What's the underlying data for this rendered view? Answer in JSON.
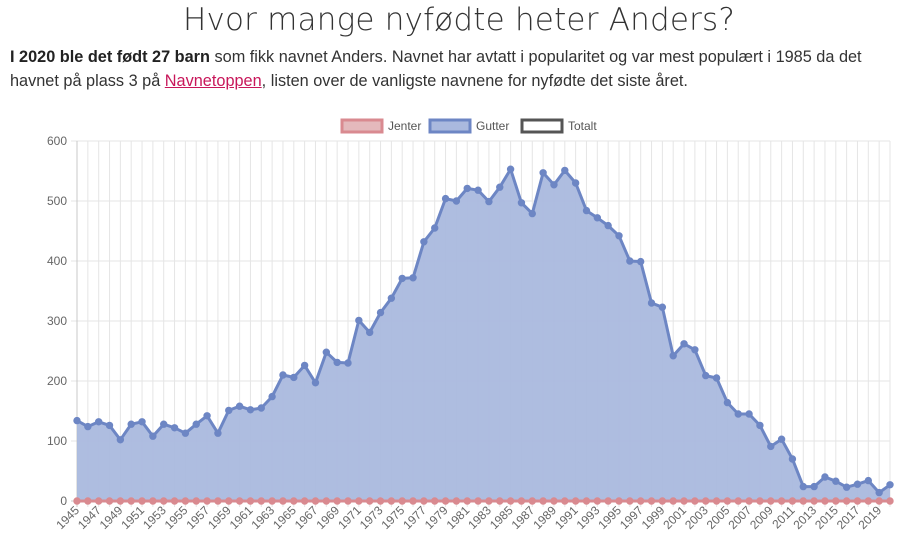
{
  "page": {
    "title": "Hvor mange nyfødte heter Anders?",
    "intro_bold": "I 2020 ble det født 27 barn",
    "intro_text_1": " som fikk navnet Anders. Navnet har avtatt i popularitet og var mest populært i 1985 da det havnet på plass 3 på ",
    "link_label": "Navnetoppen",
    "intro_text_2": ", listen over de vanligste navnene for nyfødte det siste året."
  },
  "colors": {
    "girls_fill": "#e4b9bc",
    "girls_line": "#d98a90",
    "boys_fill": "#aab9de",
    "boys_line": "#6d86c4",
    "total_line": "#555555",
    "grid": "#e5e5e5",
    "axis": "#c8c8c8"
  },
  "chart_data": {
    "type": "area",
    "title": "",
    "xlabel": "",
    "ylabel": "",
    "ylim": [
      0,
      600
    ],
    "yticks": [
      0,
      100,
      200,
      300,
      400,
      500,
      600
    ],
    "grid": true,
    "legend_position": "top-center",
    "x": [
      1945,
      1946,
      1947,
      1948,
      1949,
      1950,
      1951,
      1952,
      1953,
      1954,
      1955,
      1956,
      1957,
      1958,
      1959,
      1960,
      1961,
      1962,
      1963,
      1964,
      1965,
      1966,
      1967,
      1968,
      1969,
      1970,
      1971,
      1972,
      1973,
      1974,
      1975,
      1976,
      1977,
      1978,
      1979,
      1980,
      1981,
      1982,
      1983,
      1984,
      1985,
      1986,
      1987,
      1988,
      1989,
      1990,
      1991,
      1992,
      1993,
      1994,
      1995,
      1996,
      1997,
      1998,
      1999,
      2000,
      2001,
      2002,
      2003,
      2004,
      2005,
      2006,
      2007,
      2008,
      2009,
      2010,
      2011,
      2012,
      2013,
      2014,
      2015,
      2016,
      2017,
      2018,
      2019,
      2020
    ],
    "xtick_labels": [
      "1945",
      "1947",
      "1949",
      "1951",
      "1953",
      "1955",
      "1957",
      "1959",
      "1961",
      "1963",
      "1965",
      "1967",
      "1969",
      "1971",
      "1973",
      "1975",
      "1977",
      "1979",
      "1981",
      "1983",
      "1985",
      "1987",
      "1989",
      "1991",
      "1993",
      "1995",
      "1997",
      "1999",
      "2001",
      "2003",
      "2005",
      "2007",
      "2009",
      "2011",
      "2013",
      "2015",
      "2017",
      "2019"
    ],
    "series": [
      {
        "name": "Jenter",
        "values": [
          0,
          0,
          0,
          0,
          0,
          0,
          0,
          0,
          0,
          0,
          0,
          0,
          0,
          0,
          0,
          0,
          0,
          0,
          0,
          0,
          0,
          0,
          0,
          0,
          0,
          0,
          0,
          0,
          0,
          0,
          0,
          0,
          0,
          0,
          0,
          0,
          0,
          0,
          0,
          0,
          0,
          0,
          0,
          0,
          0,
          0,
          0,
          0,
          0,
          0,
          0,
          0,
          0,
          0,
          0,
          0,
          0,
          0,
          0,
          0,
          0,
          0,
          0,
          0,
          0,
          0,
          0,
          0,
          0,
          0,
          0,
          0,
          0,
          0,
          0,
          0
        ]
      },
      {
        "name": "Gutter",
        "values": [
          134,
          124,
          132,
          126,
          102,
          128,
          132,
          108,
          128,
          122,
          113,
          128,
          142,
          113,
          151,
          158,
          152,
          155,
          174,
          210,
          206,
          226,
          197,
          248,
          231,
          230,
          301,
          281,
          314,
          338,
          371,
          372,
          432,
          455,
          504,
          500,
          521,
          518,
          499,
          523,
          553,
          497,
          479,
          547,
          527,
          551,
          530,
          484,
          472,
          459,
          442,
          400,
          399,
          330,
          323,
          242,
          262,
          252,
          209,
          205,
          164,
          145,
          145,
          126,
          91,
          103,
          70,
          24,
          24,
          40,
          33,
          23,
          28,
          34,
          14,
          27
        ]
      },
      {
        "name": "Totalt",
        "values": [
          134,
          124,
          132,
          126,
          102,
          128,
          132,
          108,
          128,
          122,
          113,
          128,
          142,
          113,
          151,
          158,
          152,
          155,
          174,
          210,
          206,
          226,
          197,
          248,
          231,
          230,
          301,
          281,
          314,
          338,
          371,
          372,
          432,
          455,
          504,
          500,
          521,
          518,
          499,
          523,
          553,
          497,
          479,
          547,
          527,
          551,
          530,
          484,
          472,
          459,
          442,
          400,
          399,
          330,
          323,
          242,
          262,
          252,
          209,
          205,
          164,
          145,
          145,
          126,
          91,
          103,
          70,
          24,
          24,
          40,
          33,
          23,
          28,
          34,
          14,
          27
        ]
      }
    ]
  }
}
